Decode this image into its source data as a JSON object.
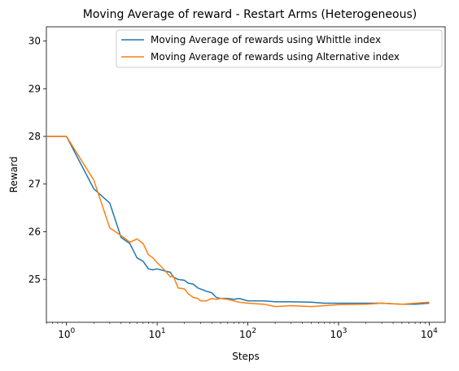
{
  "chart_data": {
    "type": "line",
    "title": "Moving Average of reward - Restart Arms (Heterogeneous)",
    "xlabel": "Steps",
    "ylabel": "Reward",
    "xscale": "log",
    "xlim": [
      0.6,
      15000
    ],
    "ylim": [
      24.1,
      30.3
    ],
    "xticks": [
      {
        "value": 1,
        "base": "10",
        "exp": "0"
      },
      {
        "value": 10,
        "base": "10",
        "exp": "1"
      },
      {
        "value": 100,
        "base": "10",
        "exp": "2"
      },
      {
        "value": 1000,
        "base": "10",
        "exp": "3"
      },
      {
        "value": 10000,
        "base": "10",
        "exp": "4"
      }
    ],
    "yticks": [
      {
        "value": 25,
        "label": "25"
      },
      {
        "value": 26,
        "label": "26"
      },
      {
        "value": 27,
        "label": "27"
      },
      {
        "value": 28,
        "label": "28"
      },
      {
        "value": 29,
        "label": "29"
      },
      {
        "value": 30,
        "label": "30"
      }
    ],
    "grid": false,
    "legend_position": "top-right",
    "series": [
      {
        "name": "Moving Average of rewards using Whittle index",
        "color": "#1f77b4",
        "x": [
          0.6,
          1,
          2,
          3,
          4,
          5,
          6,
          7,
          8,
          9,
          10,
          12,
          14,
          15,
          17,
          20,
          22,
          25,
          28,
          30,
          35,
          40,
          45,
          50,
          60,
          70,
          80,
          100,
          150,
          200,
          300,
          500,
          700,
          1000,
          2000,
          3000,
          5000,
          7000,
          10000
        ],
        "y": [
          28.0,
          28.0,
          26.9,
          26.6,
          25.88,
          25.75,
          25.45,
          25.38,
          25.22,
          25.2,
          25.22,
          25.18,
          25.15,
          25.05,
          25.0,
          24.98,
          24.92,
          24.9,
          24.82,
          24.8,
          24.75,
          24.72,
          24.62,
          24.6,
          24.6,
          24.58,
          24.6,
          24.55,
          24.55,
          24.53,
          24.53,
          24.52,
          24.5,
          24.5,
          24.5,
          24.5,
          24.48,
          24.48,
          24.5
        ]
      },
      {
        "name": "Moving Average of rewards using Alternative index",
        "color": "#ff7f0e",
        "x": [
          0.6,
          1,
          2,
          3,
          4,
          5,
          6,
          7,
          8,
          9,
          10,
          12,
          14,
          15,
          17,
          20,
          22,
          25,
          28,
          30,
          35,
          40,
          45,
          50,
          60,
          70,
          80,
          100,
          150,
          200,
          300,
          500,
          700,
          1000,
          2000,
          3000,
          5000,
          7000,
          10000
        ],
        "y": [
          28.0,
          28.0,
          27.08,
          26.08,
          25.92,
          25.78,
          25.85,
          25.75,
          25.52,
          25.45,
          25.35,
          25.2,
          25.05,
          25.08,
          24.82,
          24.8,
          24.7,
          24.62,
          24.6,
          24.55,
          24.55,
          24.6,
          24.58,
          24.6,
          24.58,
          24.55,
          24.52,
          24.5,
          24.48,
          24.43,
          24.45,
          24.43,
          24.45,
          24.47,
          24.48,
          24.5,
          24.48,
          24.5,
          24.52
        ]
      }
    ]
  }
}
